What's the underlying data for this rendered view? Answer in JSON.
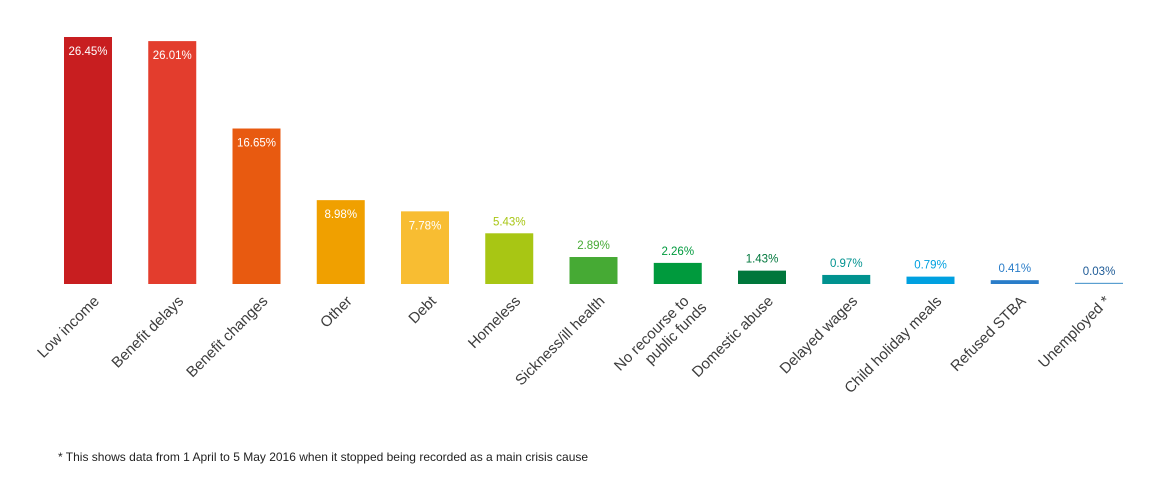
{
  "chart_data": {
    "type": "bar",
    "title": "",
    "xlabel": "",
    "ylabel": "",
    "ylim": [
      0,
      26.45
    ],
    "grid": false,
    "categories": [
      "Low income",
      "Benefit delays",
      "Benefit changes",
      "Other",
      "Debt",
      "Homeless",
      "Sickness/ill health",
      "No recourse to\npublic funds",
      "Domestic abuse",
      "Delayed wages",
      "Child holiday meals",
      "Refused STBA",
      "Unemployed *"
    ],
    "values": [
      26.45,
      26.01,
      16.65,
      8.98,
      7.78,
      5.43,
      2.89,
      2.26,
      1.43,
      0.97,
      0.79,
      0.41,
      0.03
    ],
    "data_labels": [
      "26.45%",
      "26.01%",
      "16.65%",
      "8.98%",
      "7.78%",
      "5.43%",
      "2.89%",
      "2.26%",
      "1.43%",
      "0.97%",
      "0.79%",
      "0.41%",
      "0.03%"
    ],
    "colors": [
      "#c81e20",
      "#e33d2d",
      "#e85a10",
      "#f0a000",
      "#f8bd32",
      "#a8c614",
      "#46aa34",
      "#009a3d",
      "#00773c",
      "#00928f",
      "#00a0e0",
      "#2a7dc9",
      "#5a9fd0"
    ],
    "label_colors": [
      "#ffffff",
      "#ffffff",
      "#ffffff",
      "#ffffff",
      "#ffffff",
      "#a8c614",
      "#46aa34",
      "#009a3d",
      "#00773c",
      "#00928f",
      "#00a0e0",
      "#2a7dc9",
      "#1d5a96"
    ],
    "footnote": "* This shows data from 1 April to 5 May 2016 when it stopped being recorded as a main crisis cause"
  }
}
